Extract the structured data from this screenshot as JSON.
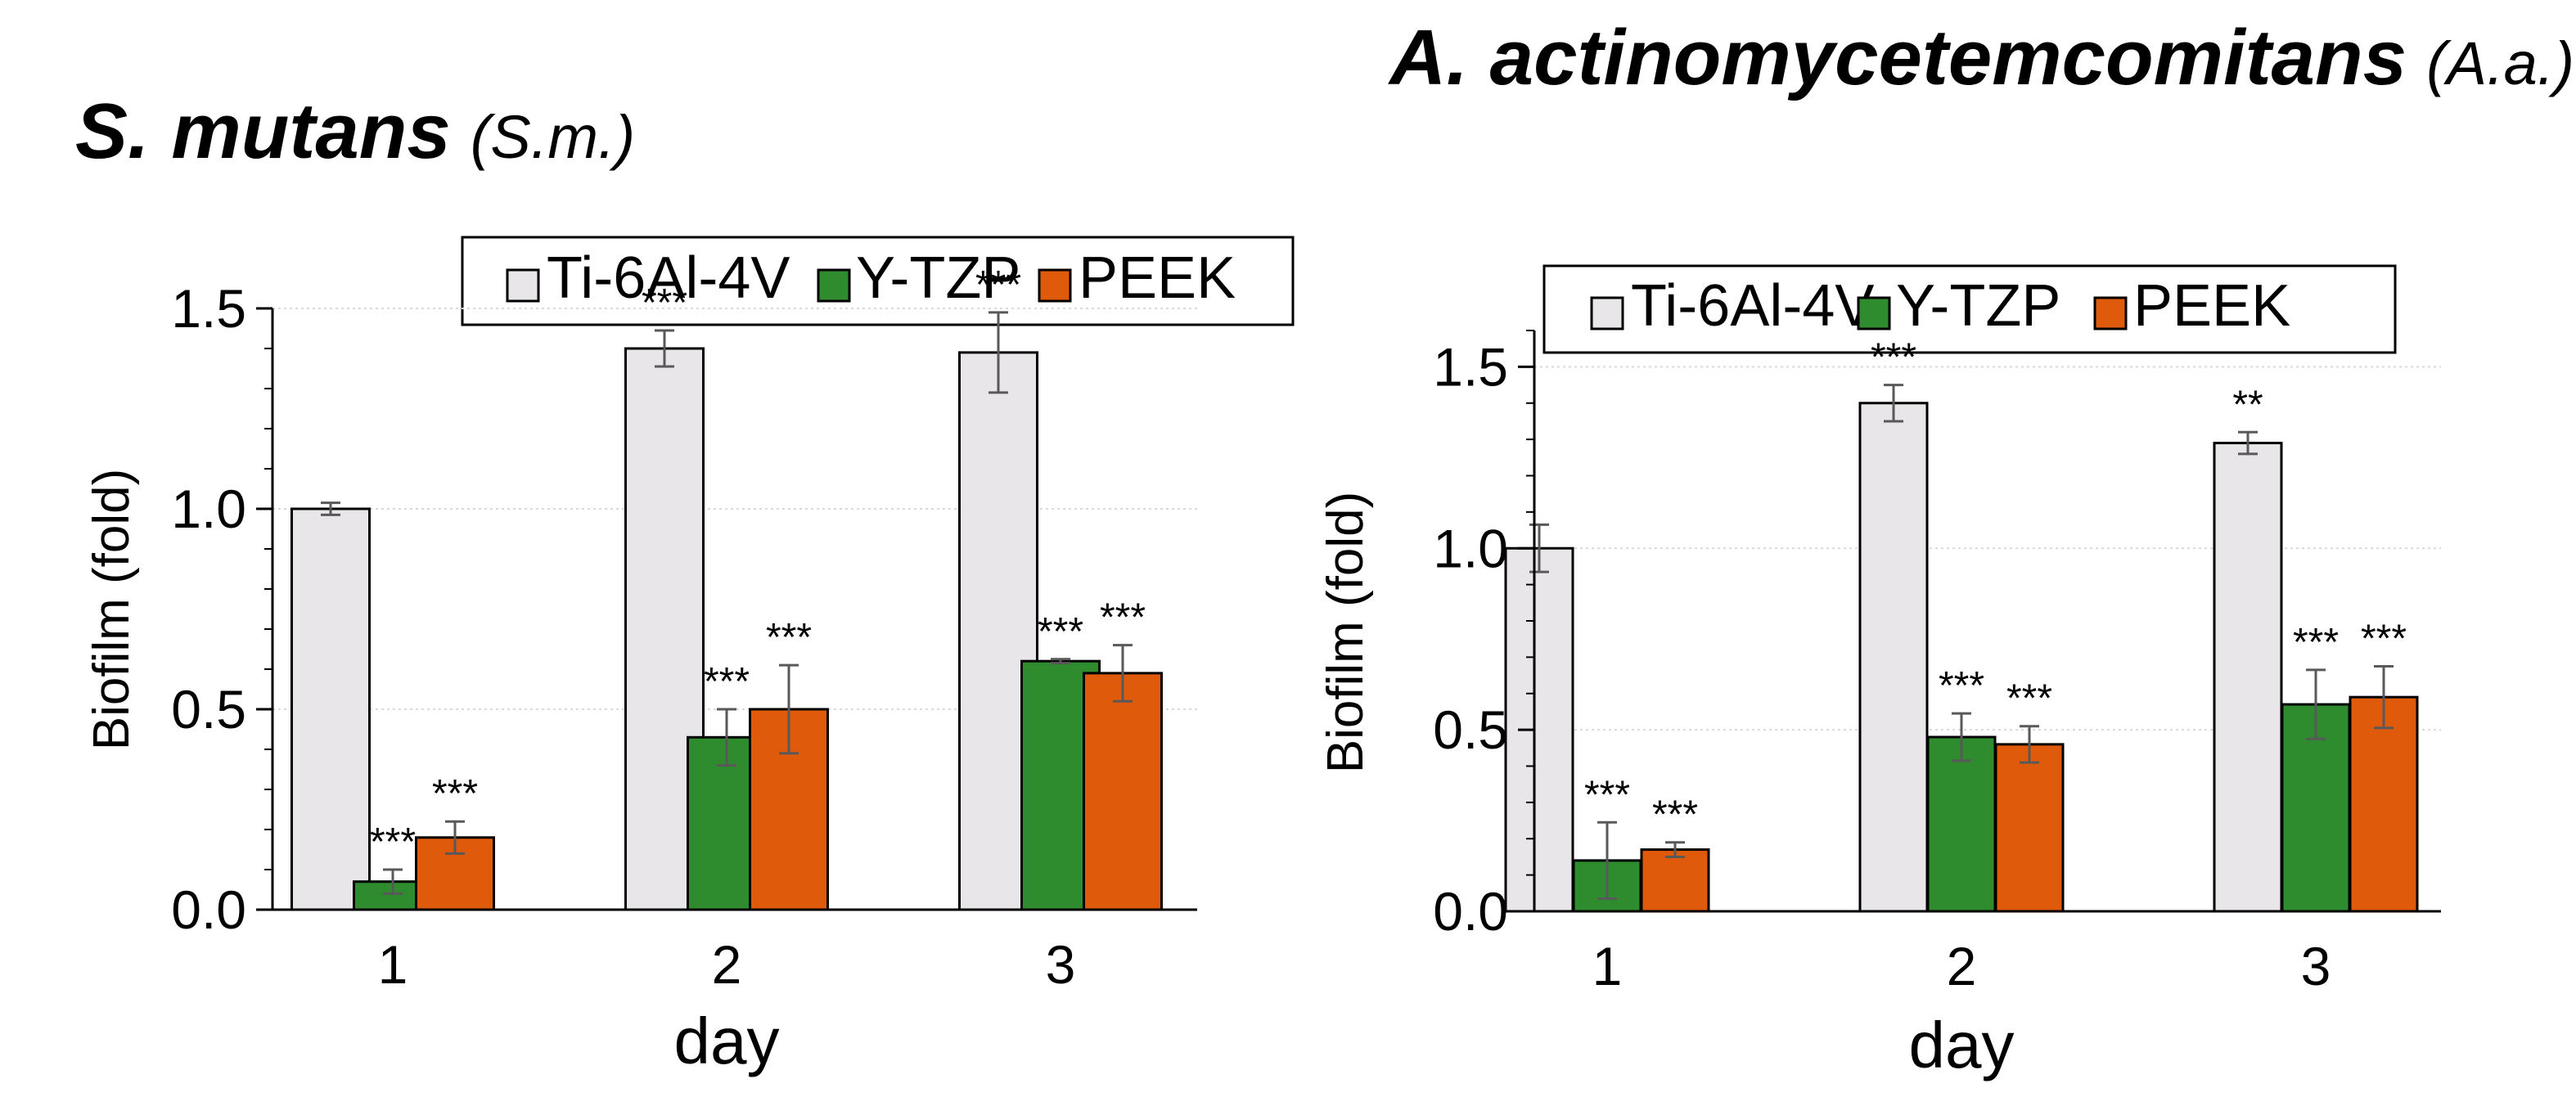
{
  "chart_data": [
    {
      "type": "bar",
      "title": "S. mutans",
      "title_abbr": "(S.m.)",
      "categories": [
        "1",
        "2",
        "3"
      ],
      "xlabel": "day",
      "ylabel": "Biofilm (fold)",
      "ylim": [
        0,
        1.5
      ],
      "yticks": [
        "0.0",
        "0.5",
        "1.0",
        "1.5"
      ],
      "grid": true,
      "legend_position": "top",
      "series": [
        {
          "name": "Ti-6Al-4V",
          "color": "#e8e6e9",
          "values": [
            1.0,
            1.4,
            1.39
          ],
          "errors": [
            0.015,
            0.045,
            0.1
          ],
          "significance": [
            "",
            "***",
            "***"
          ]
        },
        {
          "name": "Y-TZP",
          "color": "#2e8b2e",
          "values": [
            0.07,
            0.43,
            0.62
          ],
          "errors": [
            0.03,
            0.07,
            0.005
          ],
          "significance": [
            "***",
            "***",
            "***"
          ]
        },
        {
          "name": "PEEK",
          "color": "#e05a0c",
          "values": [
            0.18,
            0.5,
            0.59
          ],
          "errors": [
            0.04,
            0.11,
            0.07
          ],
          "significance": [
            "***",
            "***",
            "***"
          ]
        }
      ]
    },
    {
      "type": "bar",
      "title": "A. actinomycetemcomitans",
      "title_abbr": "(A.a.)",
      "categories": [
        "1",
        "2",
        "3"
      ],
      "xlabel": "day",
      "ylabel": "Biofilm (fold)",
      "ylim": [
        0,
        1.6
      ],
      "yticks": [
        "0.0",
        "0.5",
        "1.0",
        "1.5"
      ],
      "grid": true,
      "legend_position": "top",
      "series": [
        {
          "name": "Ti-6Al-4V",
          "color": "#e8e6e9",
          "values": [
            1.0,
            1.4,
            1.29
          ],
          "errors": [
            0.065,
            0.05,
            0.03
          ],
          "significance": [
            "",
            "***",
            "**"
          ]
        },
        {
          "name": "Y-TZP",
          "color": "#2e8b2e",
          "values": [
            0.14,
            0.48,
            0.57
          ],
          "errors": [
            0.105,
            0.065,
            0.095
          ],
          "significance": [
            "***",
            "***",
            "***"
          ]
        },
        {
          "name": "PEEK",
          "color": "#e05a0c",
          "values": [
            0.17,
            0.46,
            0.59
          ],
          "errors": [
            0.02,
            0.05,
            0.085
          ],
          "significance": [
            "***",
            "***",
            "***"
          ]
        }
      ]
    }
  ]
}
